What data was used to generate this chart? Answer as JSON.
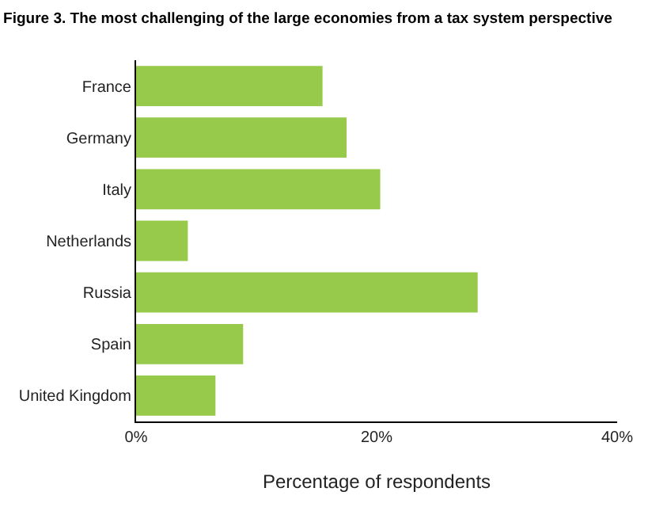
{
  "chart_data": {
    "type": "bar",
    "orientation": "horizontal",
    "title": "Figure 3. The most challenging of the large economies from a tax system perspective",
    "xlabel": "Percentage of respondents",
    "categories": [
      "France",
      "Germany",
      "Italy",
      "Netherlands",
      "Russia",
      "Spain",
      "United Kingdom"
    ],
    "values": [
      15.5,
      17.5,
      20.3,
      4.3,
      28.4,
      8.9,
      6.6
    ],
    "color": "#97c94b",
    "xlim": [
      0,
      40
    ],
    "xticks": [
      {
        "value": 0,
        "label": "0%"
      },
      {
        "value": 20,
        "label": "20%"
      },
      {
        "value": 40,
        "label": "40%"
      }
    ],
    "grid": false,
    "legend": false
  }
}
